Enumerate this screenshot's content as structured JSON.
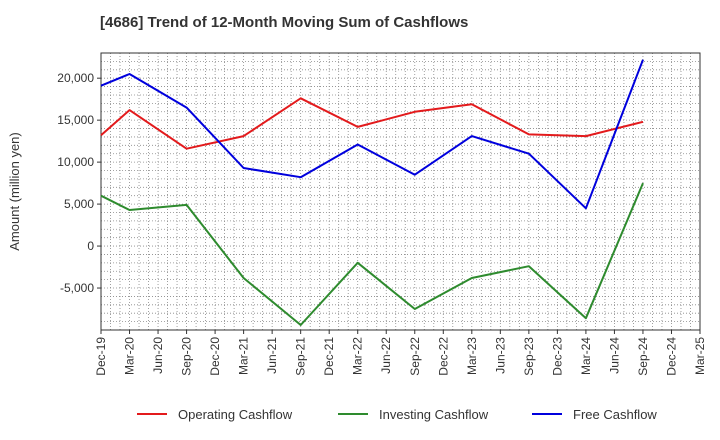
{
  "chart_data": {
    "type": "line",
    "title": "[4686]  Trend of 12-Month Moving Sum of Cashflows",
    "ylabel": "Amount (million yen)",
    "xlabel": "",
    "ylim": [
      -10000,
      23000
    ],
    "yticks": [
      20000,
      15000,
      10000,
      5000,
      0,
      -5000
    ],
    "ytick_labels": [
      "20,000",
      "15,000",
      "10,000",
      "5,000",
      "0",
      "-5,000"
    ],
    "x_ticks": [
      "Dec-19",
      "Mar-20",
      "Jun-20",
      "Sep-20",
      "Dec-20",
      "Mar-21",
      "Jun-21",
      "Sep-21",
      "Dec-21",
      "Mar-22",
      "Jun-22",
      "Sep-22",
      "Dec-22",
      "Mar-23",
      "Jun-23",
      "Sep-23",
      "Dec-23",
      "Mar-24",
      "Jun-24",
      "Sep-24",
      "Dec-24",
      "Mar-25"
    ],
    "grid": true,
    "legend_position": "bottom",
    "series": [
      {
        "name": "Operating Cashflow",
        "color": "#e31a1c",
        "x": [
          "Dec-19",
          "Mar-20",
          "Sep-20",
          "Mar-21",
          "Sep-21",
          "Mar-22",
          "Sep-22",
          "Mar-23",
          "Sep-23",
          "Mar-24",
          "Sep-24"
        ],
        "values": [
          13200,
          16200,
          11600,
          13100,
          17600,
          14200,
          16000,
          16900,
          13300,
          13100,
          14800
        ]
      },
      {
        "name": "Investing Cashflow",
        "color": "#2e8b2e",
        "x": [
          "Dec-19",
          "Mar-20",
          "Sep-20",
          "Mar-21",
          "Sep-21",
          "Mar-22",
          "Sep-22",
          "Mar-23",
          "Sep-23",
          "Mar-24",
          "Sep-24"
        ],
        "values": [
          6000,
          4300,
          4900,
          -3800,
          -9400,
          -2000,
          -7500,
          -3800,
          -2400,
          -8600,
          7500
        ]
      },
      {
        "name": "Free Cashflow",
        "color": "#0000dd",
        "x": [
          "Dec-19",
          "Mar-20",
          "Sep-20",
          "Mar-21",
          "Sep-21",
          "Mar-22",
          "Sep-22",
          "Mar-23",
          "Sep-23",
          "Mar-24",
          "Sep-24"
        ],
        "values": [
          19100,
          20500,
          16500,
          9300,
          8200,
          12100,
          8500,
          13100,
          11000,
          4500,
          22200
        ]
      }
    ]
  }
}
